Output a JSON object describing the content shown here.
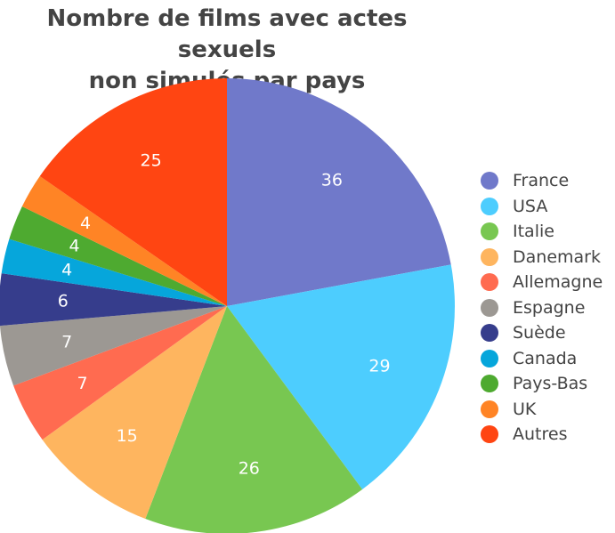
{
  "chart_data": {
    "type": "pie",
    "title_lines": [
      "Nombre de films avec actes sexuels",
      "non simulés par pays"
    ],
    "legend_position": "right",
    "slices": [
      {
        "label": "France",
        "value": 36,
        "color": "#7079CA",
        "label_color": "#ffffff"
      },
      {
        "label": "USA",
        "value": 29,
        "color": "#4DCDFE",
        "label_color": "#ffffff"
      },
      {
        "label": "Italie",
        "value": 26,
        "color": "#78C751",
        "label_color": "#ffffff"
      },
      {
        "label": "Danemark",
        "value": 15,
        "color": "#FEB55F",
        "label_color": "#ffffff"
      },
      {
        "label": "Allemagne",
        "value": 7,
        "color": "#FF6B50",
        "label_color": "#ffffff"
      },
      {
        "label": "Espagne",
        "value": 7,
        "color": "#9C9893",
        "label_color": "#ffffff"
      },
      {
        "label": "Suède",
        "value": 6,
        "color": "#363D8C",
        "label_color": "#ffffff"
      },
      {
        "label": "Canada",
        "value": 4,
        "color": "#06A6DB",
        "label_color": "#ffffff"
      },
      {
        "label": "Pays-Bas",
        "value": 4,
        "color": "#4EAA30",
        "label_color": "#ffffff"
      },
      {
        "label": "UK",
        "value": 4,
        "color": "#FF8425",
        "label_color": "#ffffff"
      },
      {
        "label": "Autres",
        "value": 25,
        "color": "#FF4512",
        "label_color": "#ffffff"
      }
    ]
  }
}
